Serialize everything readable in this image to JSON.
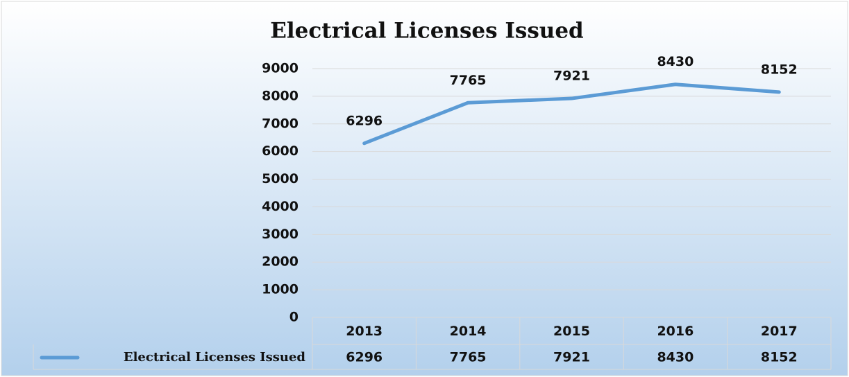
{
  "chart_data": {
    "type": "line",
    "title": "Electrical Licenses Issued",
    "categories": [
      "2013",
      "2014",
      "2015",
      "2016",
      "2017"
    ],
    "series": [
      {
        "name": "Electrical Licenses Issued",
        "color": "#5b9bd5",
        "values": [
          6296,
          7765,
          7921,
          8430,
          8152
        ]
      }
    ],
    "ylim": [
      0,
      9000
    ],
    "yticks": [
      0,
      1000,
      2000,
      3000,
      4000,
      5000,
      6000,
      7000,
      8000,
      9000
    ],
    "grid": true,
    "data_table": true
  }
}
